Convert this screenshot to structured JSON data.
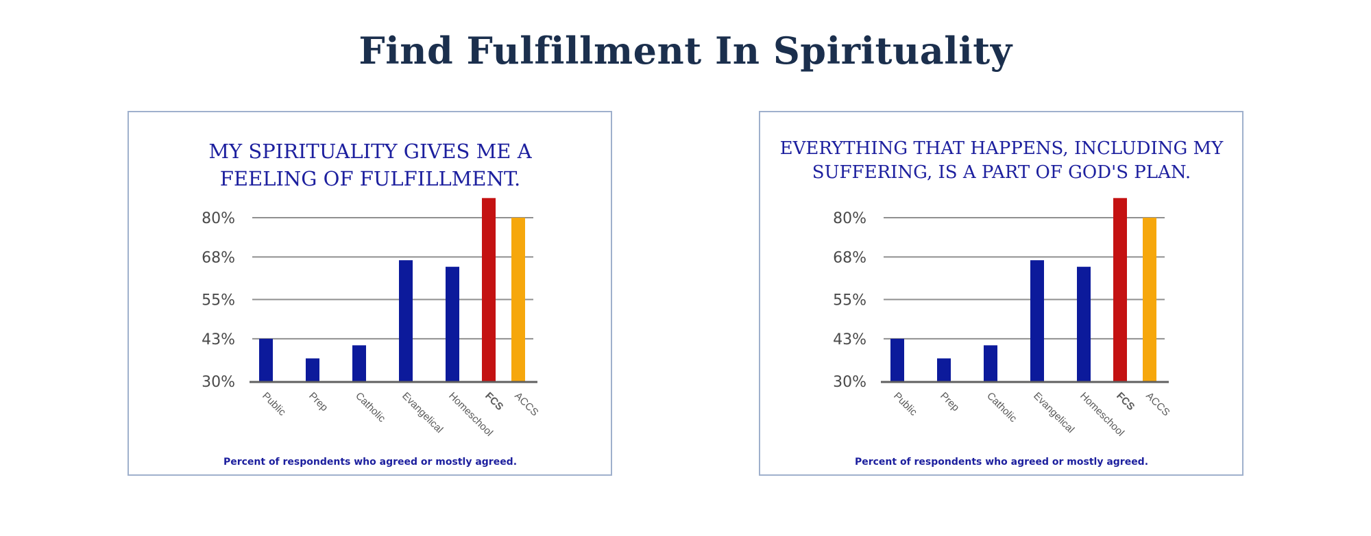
{
  "page": {
    "title": "Find Fulfillment In Spirituality"
  },
  "colors": {
    "title": "#1b2f4d",
    "chart_title": "#1c1f9e",
    "bar_default": "#0c1a9b",
    "bar_fcs": "#c41212",
    "bar_accs": "#f6a70c",
    "panel_border": "#9fb0cc",
    "gridline": "#8f8f8f",
    "baseline": "#5f5f5f"
  },
  "chart_data": [
    {
      "type": "bar",
      "title_lines": [
        "MY SPIRITUALITY GIVES ME A",
        "FEELING OF FULFILLMENT."
      ],
      "categories": [
        "Public",
        "Prep",
        "Catholic",
        "Evangelical",
        "Homeschool",
        "FCS",
        "ACCS"
      ],
      "values": [
        43,
        37,
        41,
        67,
        65,
        86,
        80
      ],
      "bar_colors": [
        "#0c1a9b",
        "#0c1a9b",
        "#0c1a9b",
        "#0c1a9b",
        "#0c1a9b",
        "#c41212",
        "#f6a70c"
      ],
      "highlight_category": "FCS",
      "yticks": [
        30,
        43,
        55,
        68,
        80
      ],
      "ytick_labels": [
        "30%",
        "43%",
        "55%",
        "68%",
        "80%"
      ],
      "ylim": [
        30,
        86
      ],
      "grid": true,
      "footnote": "Percent of respondents who agreed or mostly agreed."
    },
    {
      "type": "bar",
      "title_lines": [
        "EVERYTHING THAT HAPPENS, INCLUDING MY",
        "SUFFERING, IS A PART OF GOD'S PLAN."
      ],
      "categories": [
        "Public",
        "Prep",
        "Catholic",
        "Evangelical",
        "Homeschool",
        "FCS",
        "ACCS"
      ],
      "values": [
        43,
        37,
        41,
        67,
        65,
        86,
        80
      ],
      "bar_colors": [
        "#0c1a9b",
        "#0c1a9b",
        "#0c1a9b",
        "#0c1a9b",
        "#0c1a9b",
        "#c41212",
        "#f6a70c"
      ],
      "highlight_category": "FCS",
      "yticks": [
        30,
        43,
        55,
        68,
        80
      ],
      "ytick_labels": [
        "30%",
        "43%",
        "55%",
        "68%",
        "80%"
      ],
      "ylim": [
        30,
        86
      ],
      "grid": true,
      "footnote": "Percent of respondents who agreed or mostly agreed."
    }
  ]
}
